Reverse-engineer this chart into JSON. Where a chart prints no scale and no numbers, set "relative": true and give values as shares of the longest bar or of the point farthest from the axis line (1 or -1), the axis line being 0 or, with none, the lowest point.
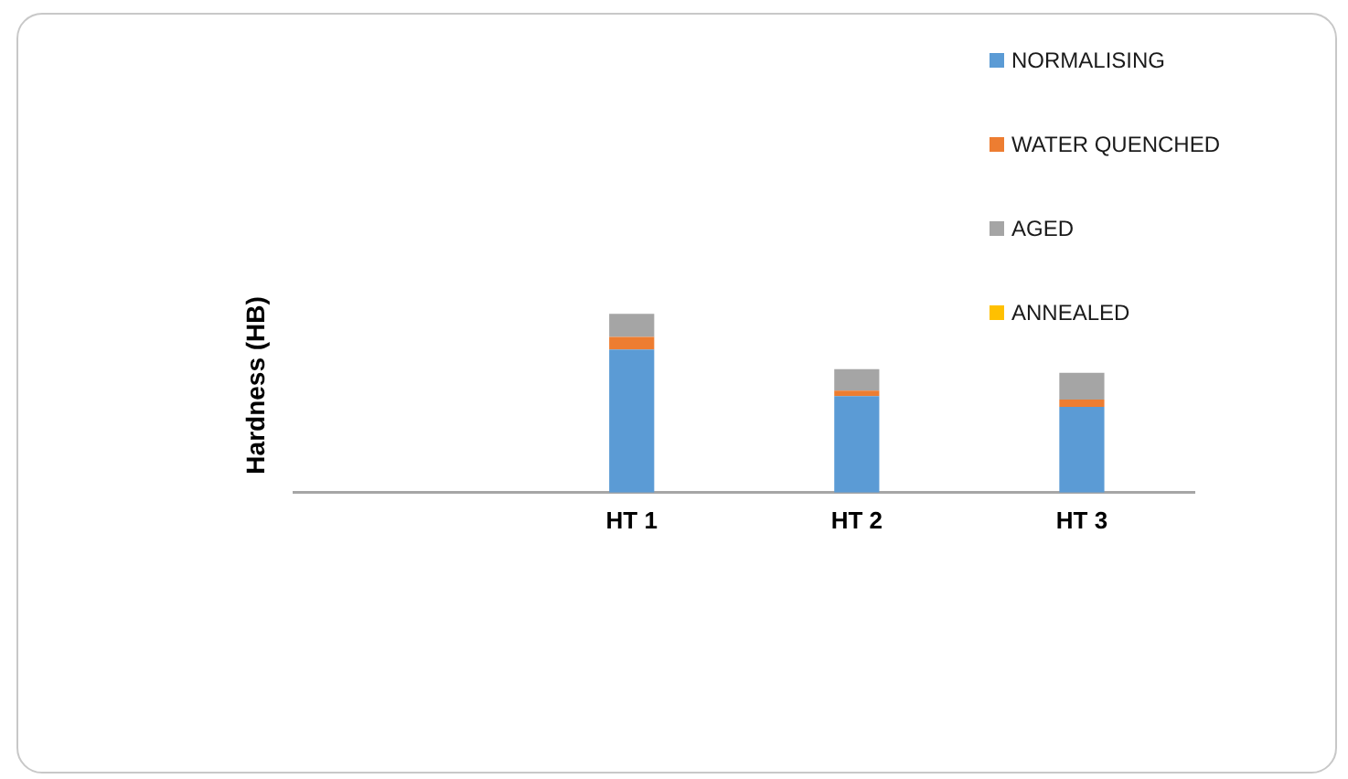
{
  "chart_data": {
    "type": "bar",
    "stacked": true,
    "relative": true,
    "ylabel": "Hardness (HB)",
    "categories": [
      null,
      "HT 1",
      "HT 2",
      "HT 3"
    ],
    "legend": "top right",
    "grid": false,
    "series": [
      {
        "name": "NORMALISING",
        "color": "#5b9bd5",
        "values": [
          null,
          0.8,
          0.54,
          0.48
        ]
      },
      {
        "name": "WATER QUENCHED",
        "color": "#ed7d31",
        "values": [
          null,
          0.07,
          0.03,
          0.04
        ]
      },
      {
        "name": "AGED",
        "color": "#a5a5a5",
        "values": [
          null,
          0.13,
          0.12,
          0.15
        ]
      },
      {
        "name": "ANNEALED",
        "color": "#ffc000",
        "values": [
          null,
          null,
          null,
          null
        ]
      }
    ]
  }
}
